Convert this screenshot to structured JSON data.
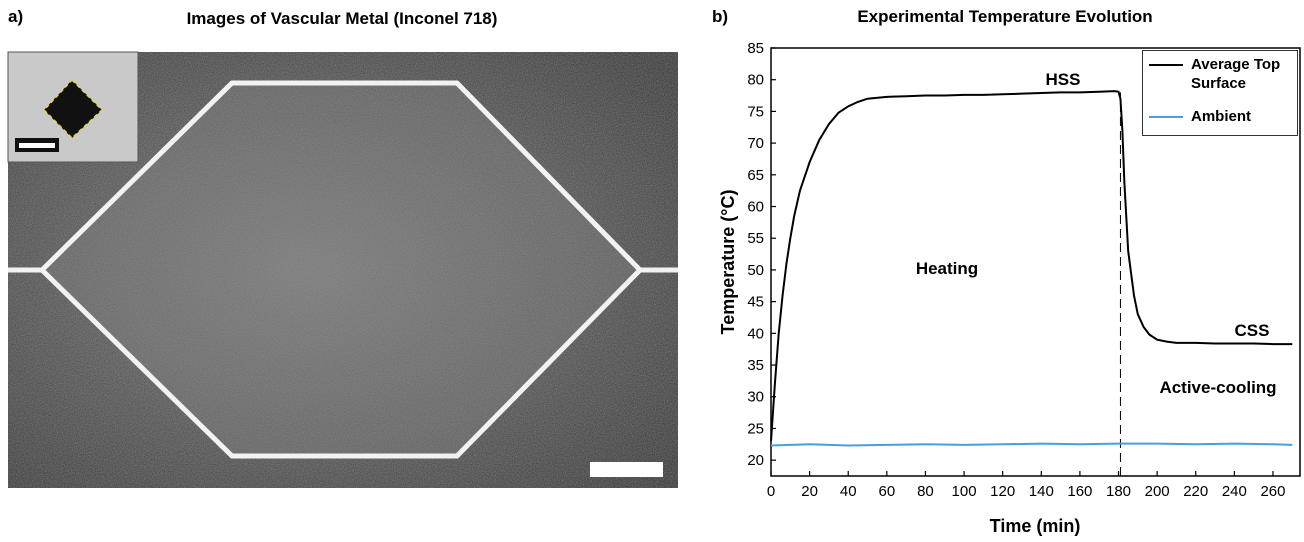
{
  "image_panel": {
    "label": "a)",
    "title": "Images of Vascular Metal (Inconel 718)"
  },
  "chart_data": {
    "type": "line",
    "panel_label": "b)",
    "title": "Experimental Temperature Evolution",
    "xlabel": "Time (min)",
    "ylabel": "Temperature (°C)",
    "xlim": [
      0,
      274
    ],
    "ylim": [
      17.5,
      85
    ],
    "xticks": [
      0,
      20,
      40,
      60,
      80,
      100,
      120,
      140,
      160,
      180,
      200,
      220,
      240,
      260
    ],
    "yticks": [
      20,
      25,
      30,
      35,
      40,
      45,
      50,
      55,
      60,
      65,
      70,
      75,
      80,
      85
    ],
    "series": [
      {
        "name": "Average Top Surface",
        "color": "#000000",
        "x": [
          0,
          2,
          4,
          6,
          8,
          10,
          12,
          15,
          20,
          25,
          30,
          35,
          40,
          45,
          50,
          60,
          70,
          80,
          90,
          100,
          110,
          120,
          130,
          140,
          150,
          160,
          170,
          178,
          180,
          181,
          182,
          183,
          185,
          188,
          190,
          193,
          196,
          200,
          205,
          210,
          220,
          230,
          240,
          250,
          260,
          270
        ],
        "values": [
          23,
          32,
          40,
          46,
          51,
          55,
          58.5,
          62.5,
          67,
          70.5,
          73,
          74.8,
          75.8,
          76.5,
          77,
          77.3,
          77.4,
          77.5,
          77.5,
          77.6,
          77.6,
          77.7,
          77.8,
          77.9,
          78,
          78,
          78.1,
          78.2,
          78.1,
          77,
          72,
          64,
          53,
          46,
          43,
          41,
          39.8,
          39,
          38.7,
          38.5,
          38.5,
          38.4,
          38.4,
          38.4,
          38.3,
          38.3
        ]
      },
      {
        "name": "Ambient",
        "color": "#4a9fd8",
        "x": [
          0,
          20,
          40,
          60,
          80,
          100,
          120,
          140,
          160,
          180,
          200,
          220,
          240,
          260,
          270
        ],
        "values": [
          22.3,
          22.5,
          22.3,
          22.4,
          22.5,
          22.4,
          22.5,
          22.6,
          22.5,
          22.6,
          22.6,
          22.5,
          22.6,
          22.5,
          22.4
        ]
      }
    ],
    "vline": {
      "x": 181,
      "ymax": 78
    },
    "annotations": [
      "HSS",
      "Heating",
      "CSS",
      "Active-cooling"
    ]
  }
}
